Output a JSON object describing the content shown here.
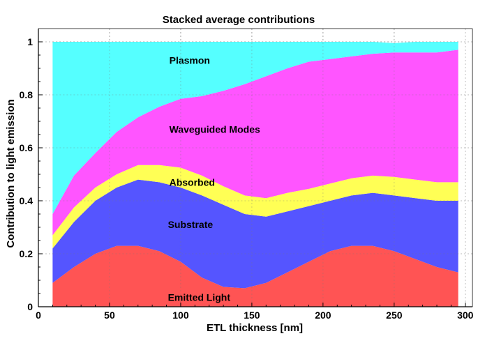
{
  "chart_data": {
    "type": "area",
    "stacked": true,
    "title": "Stacked average contributions",
    "xlabel": "ETL thickness [nm]",
    "ylabel": "Contribution to light emission",
    "xlim": [
      0,
      305
    ],
    "ylim": [
      0,
      1.05
    ],
    "xticks": [
      0,
      50,
      100,
      150,
      200,
      250,
      300
    ],
    "yticks": [
      0,
      0.2,
      0.4,
      0.6,
      0.8,
      1
    ],
    "grid": true,
    "x": [
      10,
      25,
      40,
      55,
      70,
      85,
      100,
      115,
      130,
      145,
      160,
      175,
      190,
      205,
      220,
      235,
      250,
      265,
      280,
      295
    ],
    "series": [
      {
        "name": "Emitted Light",
        "color": "#ff5454",
        "values": [
          0.09,
          0.15,
          0.2,
          0.23,
          0.23,
          0.21,
          0.17,
          0.11,
          0.075,
          0.07,
          0.09,
          0.13,
          0.17,
          0.21,
          0.23,
          0.23,
          0.21,
          0.18,
          0.15,
          0.13
        ]
      },
      {
        "name": "Substrate",
        "color": "#5555ff",
        "values": [
          0.13,
          0.17,
          0.2,
          0.22,
          0.25,
          0.26,
          0.28,
          0.31,
          0.31,
          0.28,
          0.25,
          0.23,
          0.21,
          0.19,
          0.19,
          0.2,
          0.21,
          0.23,
          0.25,
          0.27
        ]
      },
      {
        "name": "Absorbed",
        "color": "#ffff55",
        "values": [
          0.05,
          0.055,
          0.05,
          0.05,
          0.055,
          0.065,
          0.075,
          0.075,
          0.07,
          0.07,
          0.07,
          0.07,
          0.065,
          0.065,
          0.065,
          0.065,
          0.07,
          0.07,
          0.07,
          0.07
        ]
      },
      {
        "name": "Waveguided Modes",
        "color": "#ff55ff",
        "values": [
          0.08,
          0.12,
          0.13,
          0.16,
          0.18,
          0.22,
          0.26,
          0.3,
          0.36,
          0.42,
          0.46,
          0.47,
          0.48,
          0.47,
          0.46,
          0.46,
          0.47,
          0.48,
          0.49,
          0.5
        ]
      },
      {
        "name": "Plasmon",
        "color": "#55ffff",
        "values": [
          0.65,
          0.505,
          0.42,
          0.34,
          0.285,
          0.245,
          0.215,
          0.205,
          0.185,
          0.16,
          0.13,
          0.1,
          0.075,
          0.065,
          0.055,
          0.045,
          0.035,
          0.04,
          0.04,
          0.03
        ]
      }
    ]
  }
}
